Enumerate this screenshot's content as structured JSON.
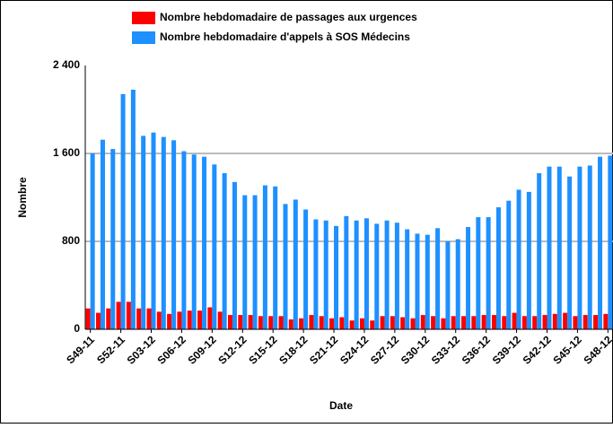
{
  "chart_data": {
    "type": "bar",
    "x_label": "Date",
    "y_label": "Nombre",
    "categories": [
      "S49-11",
      null,
      null,
      "S52-11",
      null,
      null,
      "S03-12",
      null,
      null,
      "S06-12",
      null,
      null,
      "S09-12",
      null,
      null,
      "S12-12",
      null,
      null,
      "S15-12",
      null,
      null,
      "S18-12",
      null,
      null,
      "S21-12",
      null,
      null,
      "S24-12",
      null,
      null,
      "S27-12",
      null,
      null,
      "S30-12",
      null,
      null,
      "S33-12",
      null,
      null,
      "S36-12",
      null,
      null,
      "S39-12",
      null,
      null,
      "S42-12",
      null,
      null,
      "S45-12",
      null,
      null,
      "S48-12"
    ],
    "series": [
      {
        "name": "Nombre hebdomadaire de passages aux urgences",
        "color": "#ff0000",
        "values": [
          190,
          150,
          190,
          250,
          250,
          190,
          190,
          160,
          140,
          160,
          170,
          170,
          200,
          160,
          130,
          130,
          130,
          120,
          120,
          120,
          90,
          100,
          130,
          120,
          100,
          110,
          80,
          100,
          80,
          120,
          120,
          110,
          100,
          130,
          120,
          100,
          120,
          120,
          120,
          130,
          130,
          120,
          150,
          120,
          120,
          130,
          140,
          150,
          120,
          130,
          130,
          140
        ]
      },
      {
        "name": "Nombre hebdomadaire d'appels à SOS Médecins",
        "color": "#1e90ff",
        "values": [
          1600,
          1725,
          1640,
          2140,
          2180,
          1760,
          1790,
          1750,
          1720,
          1620,
          1590,
          1570,
          1500,
          1420,
          1340,
          1220,
          1220,
          1310,
          1300,
          1140,
          1180,
          1090,
          1000,
          990,
          940,
          1030,
          990,
          1010,
          960,
          990,
          970,
          910,
          870,
          860,
          920,
          800,
          820,
          930,
          1020,
          1020,
          1110,
          1170,
          1270,
          1250,
          1420,
          1480,
          1480,
          1390,
          1480,
          1490,
          1570,
          1580
        ]
      }
    ],
    "ylim": [
      0,
      2400
    ],
    "yticks": [
      0,
      800,
      {
        "value": 1600,
        "label": "1 600"
      },
      {
        "value": 2400,
        "label": "2 400"
      }
    ],
    "grid": true
  }
}
